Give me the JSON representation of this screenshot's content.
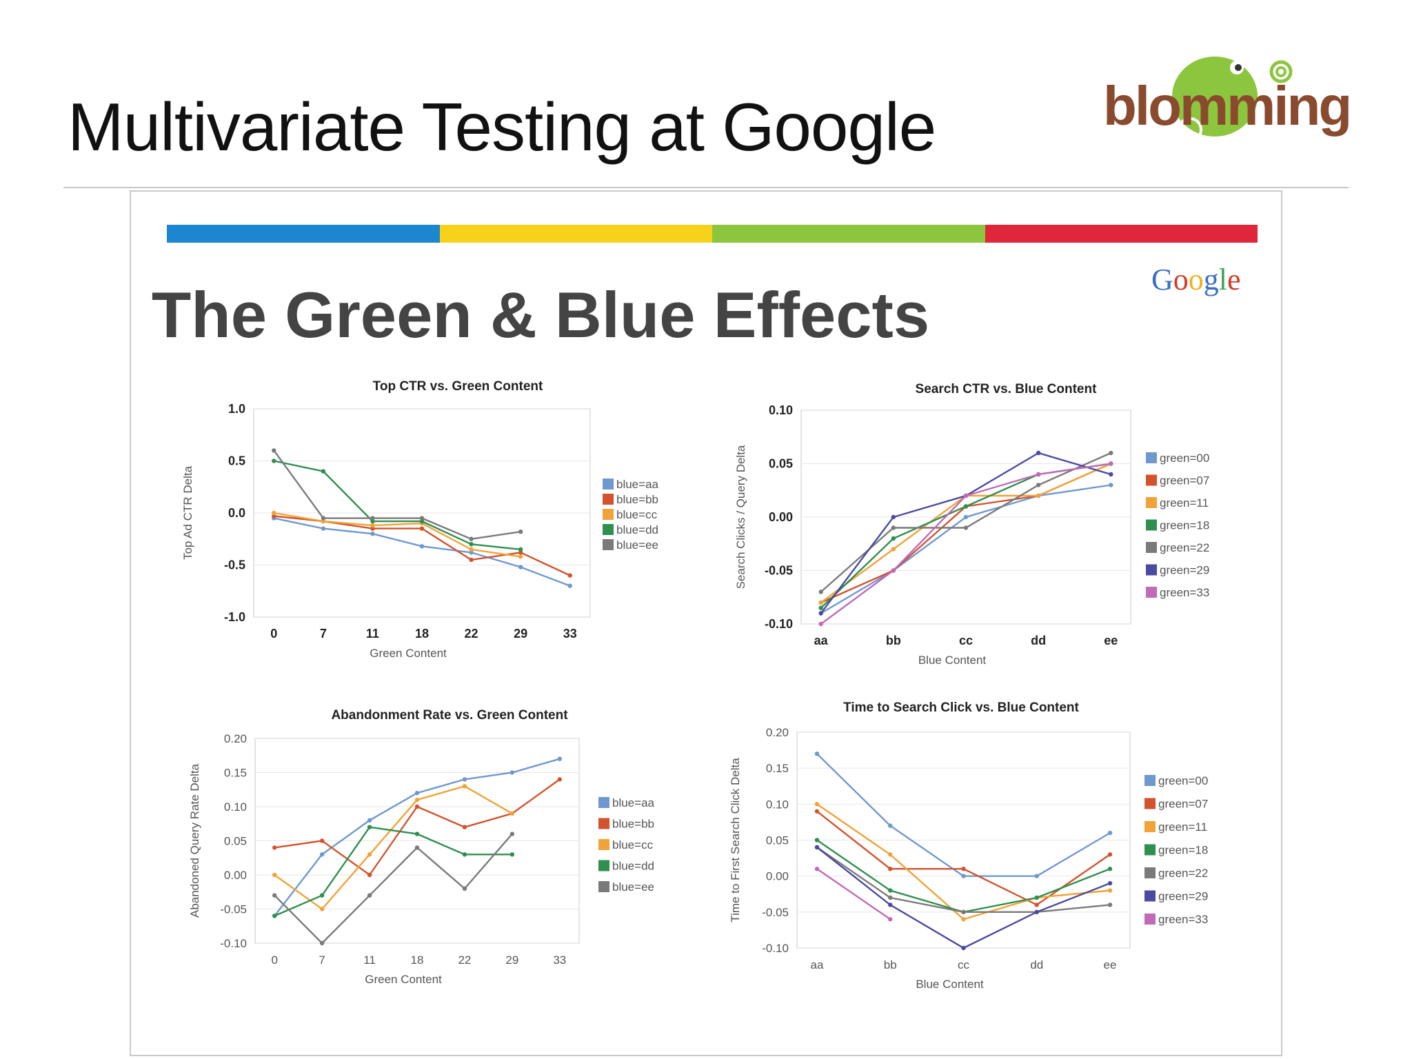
{
  "slide": {
    "title": "Multivariate Testing at Google",
    "logo_text": "blomming"
  },
  "embed": {
    "google_logo": "Google",
    "title": "The Green & Blue Effects",
    "bar_colors": [
      "#1d86d0",
      "#f6d21b",
      "#8cc63f",
      "#e0263a"
    ]
  },
  "colors": {
    "aa": "#6f98cf",
    "bb": "#d2532d",
    "cc": "#f0a338",
    "dd": "#2f8f4e",
    "ee": "#7a7a7a",
    "green00": "#6f98cf",
    "green07": "#d2532d",
    "green11": "#f0a338",
    "green18": "#2f8f4e",
    "green22": "#7a7a7a",
    "green29": "#4a4aa0",
    "green33": "#c06ab8"
  },
  "chart_data": [
    {
      "type": "line",
      "title": "Top CTR vs. Green Content",
      "xlabel": "Green Content",
      "ylabel": "Top Ad CTR Delta",
      "categories": [
        "0",
        "7",
        "11",
        "18",
        "22",
        "29",
        "33"
      ],
      "yticks": [
        "1.0",
        "0.5",
        "0.0",
        "-0.5",
        "-1.0"
      ],
      "ylim": [
        -1.0,
        1.0
      ],
      "legend": "right",
      "series": [
        {
          "name": "blue=aa",
          "color_key": "aa",
          "values": [
            -0.05,
            -0.15,
            -0.2,
            -0.32,
            -0.38,
            -0.52,
            -0.7
          ]
        },
        {
          "name": "blue=bb",
          "color_key": "bb",
          "values": [
            -0.03,
            -0.08,
            -0.15,
            -0.15,
            -0.45,
            -0.38,
            -0.6
          ]
        },
        {
          "name": "blue=cc",
          "color_key": "cc",
          "values": [
            0.0,
            -0.08,
            -0.12,
            -0.1,
            -0.35,
            -0.42,
            null
          ]
        },
        {
          "name": "blue=dd",
          "color_key": "dd",
          "values": [
            0.5,
            0.4,
            -0.08,
            -0.08,
            -0.3,
            -0.35,
            null
          ]
        },
        {
          "name": "blue=ee",
          "color_key": "ee",
          "values": [
            0.6,
            -0.05,
            -0.05,
            -0.05,
            -0.25,
            -0.18,
            null
          ]
        }
      ]
    },
    {
      "type": "line",
      "title": "Search CTR vs. Blue Content",
      "xlabel": "Blue Content",
      "ylabel": "Search Clicks / Query Delta",
      "categories": [
        "aa",
        "bb",
        "cc",
        "dd",
        "ee"
      ],
      "yticks": [
        "0.10",
        "0.05",
        "0.00",
        "-0.05",
        "-0.10"
      ],
      "ylim": [
        -0.1,
        0.1
      ],
      "legend": "right",
      "series": [
        {
          "name": "green=00",
          "color_key": "green00",
          "values": [
            -0.09,
            -0.05,
            0.0,
            0.02,
            0.03
          ]
        },
        {
          "name": "green=07",
          "color_key": "green07",
          "values": [
            -0.08,
            -0.05,
            0.01,
            0.02,
            0.05
          ]
        },
        {
          "name": "green=11",
          "color_key": "green11",
          "values": [
            -0.08,
            -0.03,
            0.02,
            0.02,
            0.05
          ]
        },
        {
          "name": "green=18",
          "color_key": "green18",
          "values": [
            -0.085,
            -0.02,
            0.01,
            0.04,
            0.05
          ]
        },
        {
          "name": "green=22",
          "color_key": "green22",
          "values": [
            -0.07,
            -0.01,
            -0.01,
            0.03,
            0.06
          ]
        },
        {
          "name": "green=29",
          "color_key": "green29",
          "values": [
            -0.09,
            0.0,
            0.02,
            0.06,
            0.04
          ]
        },
        {
          "name": "green=33",
          "color_key": "green33",
          "values": [
            -0.1,
            -0.05,
            0.02,
            0.04,
            0.05
          ]
        }
      ]
    },
    {
      "type": "line",
      "title": "Abandonment Rate vs. Green Content",
      "xlabel": "Green Content",
      "ylabel": "Abandoned Query Rate Delta",
      "categories": [
        "0",
        "7",
        "11",
        "18",
        "22",
        "29",
        "33"
      ],
      "yticks": [
        "0.20",
        "0.15",
        "0.10",
        "0.05",
        "0.00",
        "-0.05",
        "-0.10"
      ],
      "ylim": [
        -0.1,
        0.2
      ],
      "legend": "right",
      "series": [
        {
          "name": "blue=aa",
          "color_key": "aa",
          "values": [
            -0.06,
            0.03,
            0.08,
            0.12,
            0.14,
            0.15,
            0.17
          ]
        },
        {
          "name": "blue=bb",
          "color_key": "bb",
          "values": [
            0.04,
            0.05,
            0.0,
            0.1,
            0.07,
            0.09,
            0.14
          ]
        },
        {
          "name": "blue=cc",
          "color_key": "cc",
          "values": [
            0.0,
            -0.05,
            0.03,
            0.11,
            0.13,
            0.09,
            null
          ]
        },
        {
          "name": "blue=dd",
          "color_key": "dd",
          "values": [
            -0.06,
            -0.03,
            0.07,
            0.06,
            0.03,
            0.03,
            null
          ]
        },
        {
          "name": "blue=ee",
          "color_key": "ee",
          "values": [
            -0.03,
            -0.1,
            -0.03,
            0.04,
            -0.02,
            0.06,
            null
          ]
        }
      ]
    },
    {
      "type": "line",
      "title": "Time to Search Click vs. Blue Content",
      "xlabel": "Blue Content",
      "ylabel": "Time to First Search Click Delta",
      "categories": [
        "aa",
        "bb",
        "cc",
        "dd",
        "ee"
      ],
      "yticks": [
        "0.20",
        "0.15",
        "0.10",
        "0.05",
        "0.00",
        "-0.05",
        "-0.10"
      ],
      "ylim": [
        -0.1,
        0.2
      ],
      "legend": "right",
      "series": [
        {
          "name": "green=00",
          "color_key": "green00",
          "values": [
            0.17,
            0.07,
            0.0,
            0.0,
            0.06
          ]
        },
        {
          "name": "green=07",
          "color_key": "green07",
          "values": [
            0.09,
            0.01,
            0.01,
            -0.04,
            0.03
          ]
        },
        {
          "name": "green=11",
          "color_key": "green11",
          "values": [
            0.1,
            0.03,
            -0.06,
            -0.03,
            -0.02
          ]
        },
        {
          "name": "green=18",
          "color_key": "green18",
          "values": [
            0.05,
            -0.02,
            -0.05,
            -0.03,
            0.01
          ]
        },
        {
          "name": "green=22",
          "color_key": "green22",
          "values": [
            0.04,
            -0.03,
            -0.05,
            -0.05,
            -0.04
          ]
        },
        {
          "name": "green=29",
          "color_key": "green29",
          "values": [
            0.04,
            -0.04,
            -0.1,
            -0.05,
            -0.01
          ]
        },
        {
          "name": "green=33",
          "color_key": "green33",
          "values": [
            0.01,
            -0.06,
            null,
            null,
            null
          ]
        }
      ]
    }
  ]
}
